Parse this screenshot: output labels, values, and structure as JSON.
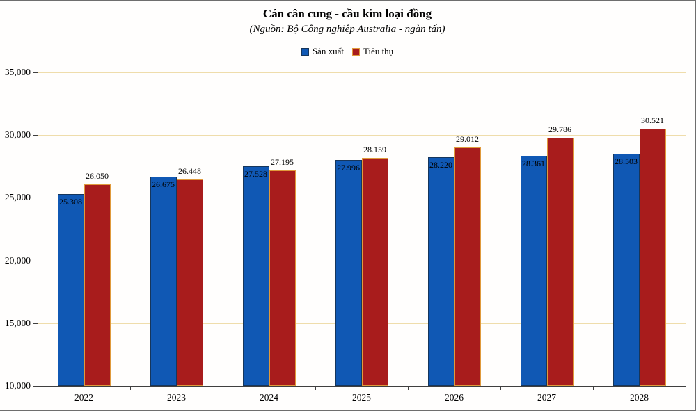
{
  "chart_data": {
    "type": "bar",
    "title": "Cán cân cung - cầu kim loại đồng",
    "subtitle": "(Nguồn: Bộ Công nghiệp Australia - ngàn tấn)",
    "unit_note": "ngàn tấn",
    "categories": [
      "2022",
      "2023",
      "2024",
      "2025",
      "2026",
      "2027",
      "2028"
    ],
    "series": [
      {
        "name": "Sản xuất",
        "slug": "san-xuat",
        "color": "#1058b4",
        "border_color": "#16365c",
        "values": [
          25308,
          26675,
          27528,
          27996,
          28220,
          28361,
          28503
        ],
        "labels": [
          "25.308",
          "26.675",
          "27.528",
          "27.996",
          "28.220",
          "28.361",
          "28.503"
        ],
        "label_position": "inside"
      },
      {
        "name": "Tiêu thụ",
        "slug": "tieu-thu",
        "color": "#a81c1c",
        "border_color": "#e09a3c",
        "values": [
          26050,
          26448,
          27195,
          28159,
          29012,
          29786,
          30521
        ],
        "labels": [
          "26.050",
          "26.448",
          "27.195",
          "28.159",
          "29.012",
          "29.786",
          "30.521"
        ],
        "label_position": "outside"
      }
    ],
    "ylim": [
      10000,
      35000
    ],
    "yticks": [
      {
        "value": 10000,
        "label": "10,000"
      },
      {
        "value": 15000,
        "label": "15,000"
      },
      {
        "value": 20000,
        "label": "20,000"
      },
      {
        "value": 25000,
        "label": "25,000"
      },
      {
        "value": 30000,
        "label": "30,000"
      },
      {
        "value": 35000,
        "label": "35,000"
      }
    ],
    "legend_position": "top-center",
    "grid": true,
    "gridline_color": "#efddab",
    "axis_color": "#3f3f3f",
    "label_color": "#000000"
  }
}
